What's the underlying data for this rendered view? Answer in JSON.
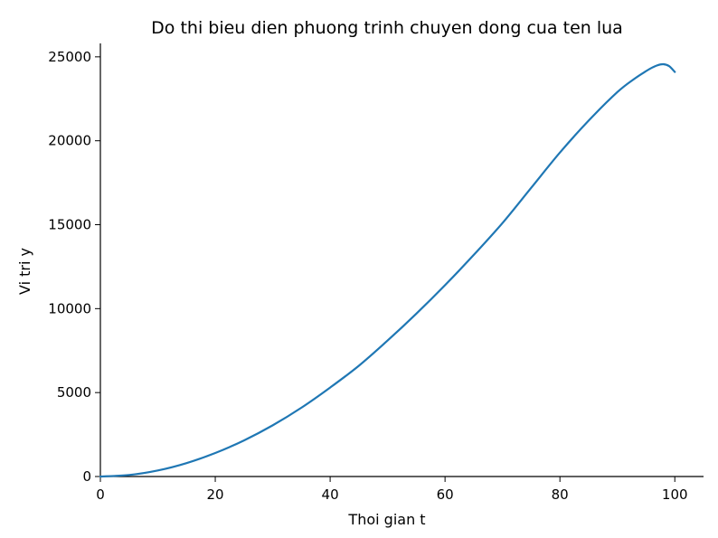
{
  "chart_data": {
    "type": "line",
    "title": "Do thi bieu dien phuong trinh chuyen dong cua ten lua",
    "xlabel": "Thoi gian t",
    "ylabel": "Vi tri y",
    "xlim": [
      0,
      105
    ],
    "ylim": [
      0,
      25800
    ],
    "xticks": [
      0,
      20,
      40,
      60,
      80,
      100
    ],
    "yticks": [
      0,
      5000,
      10000,
      15000,
      20000,
      25000
    ],
    "xtick_labels": [
      "0",
      "20",
      "40",
      "60",
      "80",
      "100"
    ],
    "ytick_labels": [
      "0",
      "5000",
      "10000",
      "15000",
      "20000",
      "25000"
    ],
    "grid": false,
    "series": [
      {
        "color": "#1f77b4",
        "x": [
          0,
          5,
          10,
          15,
          20,
          25,
          30,
          35,
          40,
          45,
          50,
          55,
          60,
          65,
          70,
          75,
          80,
          85,
          90,
          93,
          95,
          96,
          97,
          98,
          99,
          100
        ],
        "y": [
          0,
          90,
          360,
          800,
          1400,
          2150,
          3050,
          4100,
          5300,
          6600,
          8100,
          9700,
          11400,
          13200,
          15100,
          17200,
          19300,
          21200,
          22900,
          23700,
          24150,
          24350,
          24500,
          24560,
          24450,
          24100
        ]
      }
    ]
  }
}
